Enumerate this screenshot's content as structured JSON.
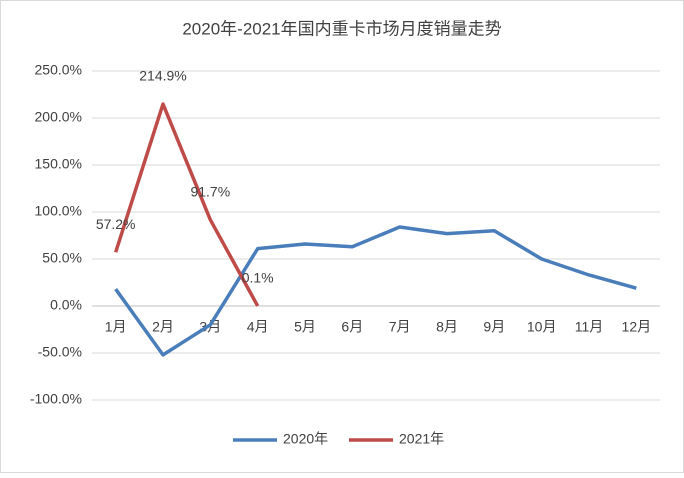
{
  "chart_data": {
    "type": "line",
    "title": "2020年-2021年国内重卡市场月度销量走势",
    "categories": [
      "1月",
      "2月",
      "3月",
      "4月",
      "5月",
      "6月",
      "7月",
      "8月",
      "9月",
      "10月",
      "11月",
      "12月"
    ],
    "series": [
      {
        "name": "2020年",
        "color": "#4a7ebb",
        "values": [
          18,
          -52,
          -20,
          61,
          66,
          63,
          84,
          77,
          80,
          50,
          33,
          19
        ]
      },
      {
        "name": "2021年",
        "color": "#be4b48",
        "values": [
          57.2,
          214.9,
          91.7,
          0.1,
          null,
          null,
          null,
          null,
          null,
          null,
          null,
          null
        ],
        "value_labels": [
          "57.2%",
          "214.9%",
          "91.7%",
          "0.1%",
          null,
          null,
          null,
          null,
          null,
          null,
          null,
          null
        ]
      }
    ],
    "ylim": [
      -100,
      250
    ],
    "yticks": [
      {
        "value": -100,
        "label": "-100.0%"
      },
      {
        "value": -50,
        "label": "-50.0%"
      },
      {
        "value": 0,
        "label": "0.0%"
      },
      {
        "value": 50,
        "label": "50.0%"
      },
      {
        "value": 100,
        "label": "100.0%"
      },
      {
        "value": 150,
        "label": "150.0%"
      },
      {
        "value": 200,
        "label": "200.0%"
      },
      {
        "value": 250,
        "label": "250.0%"
      }
    ],
    "grid": true,
    "legend": "bottom"
  }
}
